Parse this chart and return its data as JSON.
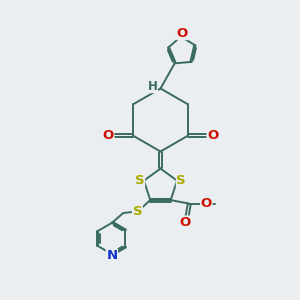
{
  "bg_color": "#eaeef0",
  "bond_color": "#3a6b60",
  "bond_lw": 1.4,
  "dbo": 0.06,
  "atom_colors": {
    "O": "#cc1100",
    "S": "#aaaa00",
    "N": "#1133cc",
    "H": "#3a6b60"
  },
  "fs": 9.5,
  "fig_size": [
    3.0,
    3.0
  ],
  "dpi": 100
}
